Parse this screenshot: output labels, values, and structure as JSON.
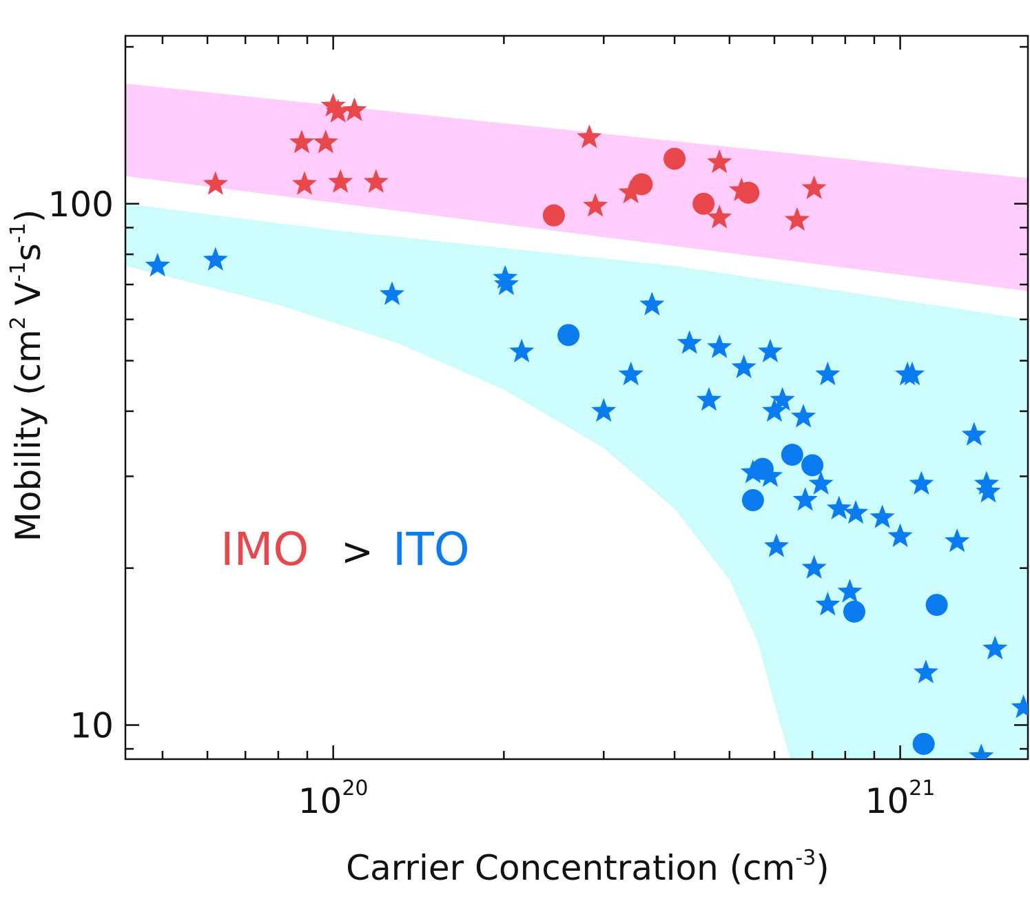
{
  "chart_data": {
    "type": "scatter",
    "x_scale": "log",
    "y_scale": "log",
    "xlabel": "Carrier Concentration (cm",
    "xlabel_sup": "-3",
    "xlabel_end": ")",
    "ylabel_parts": [
      "Mobility (cm",
      "2",
      " V",
      "-1",
      "s",
      "-1",
      ")"
    ],
    "xlim": [
      4.3e+19,
      1.68e+21
    ],
    "ylim": [
      8.6,
      210
    ],
    "x_ticks": [
      {
        "base": "10",
        "exp": "20",
        "value": 1e+20
      },
      {
        "base": "10",
        "exp": "21",
        "value": 1e+21
      }
    ],
    "y_ticks": [
      {
        "label": "100",
        "value": 100
      },
      {
        "label": "10",
        "value": 10
      }
    ],
    "grid": false,
    "annotation": {
      "parts": [
        {
          "text": "IMO",
          "color": "#e8474c"
        },
        {
          "text": ">",
          "color": "#111111"
        },
        {
          "text": "ITO",
          "color": "#0a7cf0"
        }
      ]
    },
    "bands": [
      {
        "color": "#ffccfb",
        "upper": [
          [
            4.3e+19,
            170
          ],
          [
            1.68e+21,
            112
          ]
        ],
        "lower": [
          [
            4.3e+19,
            113
          ],
          [
            1.68e+21,
            68
          ]
        ]
      },
      {
        "color": "#ccfcfb",
        "upper": [
          [
            4.3e+19,
            100
          ],
          [
            1e+20,
            89
          ],
          [
            4e+20,
            76
          ],
          [
            1.68e+21,
            60
          ]
        ],
        "lower": [
          [
            4.3e+19,
            76
          ],
          [
            8e+19,
            64
          ],
          [
            1.3e+20,
            54
          ],
          [
            2e+20,
            44
          ],
          [
            3e+20,
            34
          ],
          [
            4e+20,
            26
          ],
          [
            5e+20,
            19
          ],
          [
            5.6e+20,
            14.5
          ],
          [
            6e+20,
            11
          ],
          [
            6.4e+20,
            8.6
          ],
          [
            1.68e+21,
            8.6
          ]
        ]
      }
    ],
    "series": [
      {
        "marker": "star",
        "color": "#e8474c",
        "points": [
          [
            6.2e+19,
            109
          ],
          [
            8.8e+19,
            131
          ],
          [
            8.9e+19,
            109
          ],
          [
            9.7e+19,
            131
          ],
          [
            1e+20,
            154
          ],
          [
            1.02e+20,
            150
          ],
          [
            1.09e+20,
            151
          ],
          [
            1.03e+20,
            110
          ],
          [
            1.19e+20,
            110
          ],
          [
            2.83e+20,
            134
          ],
          [
            2.9e+20,
            99
          ],
          [
            3.35e+20,
            105
          ],
          [
            4.8e+20,
            120
          ],
          [
            5.25e+20,
            106
          ],
          [
            4.8e+20,
            94
          ],
          [
            6.58e+20,
            93
          ],
          [
            7.05e+20,
            107
          ]
        ]
      },
      {
        "marker": "circle",
        "color": "#e8474c",
        "points": [
          [
            2.45e+20,
            95
          ],
          [
            3.5e+20,
            109
          ],
          [
            4e+20,
            122
          ],
          [
            4.5e+20,
            100
          ],
          [
            5.4e+20,
            105
          ]
        ]
      },
      {
        "marker": "star",
        "color": "#0a7cf0",
        "points": [
          [
            4.9e+19,
            76
          ],
          [
            6.2e+19,
            78
          ],
          [
            1.27e+20,
            67
          ],
          [
            2.01e+20,
            72
          ],
          [
            2.02e+20,
            70
          ],
          [
            2.15e+20,
            52
          ],
          [
            3e+20,
            40
          ],
          [
            3.35e+20,
            47
          ],
          [
            3.65e+20,
            64
          ],
          [
            4.25e+20,
            54
          ],
          [
            4.6e+20,
            42
          ],
          [
            4.8e+20,
            53
          ],
          [
            5.3e+20,
            48.5
          ],
          [
            5.9e+20,
            52
          ],
          [
            5.9e+20,
            30
          ],
          [
            6e+20,
            40
          ],
          [
            6.2e+20,
            42
          ],
          [
            6.75e+20,
            39
          ],
          [
            6.8e+20,
            27
          ],
          [
            7.05e+20,
            20
          ],
          [
            7.25e+20,
            29
          ],
          [
            7.45e+20,
            47
          ],
          [
            7.45e+20,
            17
          ],
          [
            7.8e+20,
            26
          ],
          [
            8.15e+20,
            18
          ],
          [
            8.35e+20,
            25.5
          ],
          [
            9.3e+20,
            25
          ],
          [
            1e+21,
            23
          ],
          [
            1.03e+21,
            47
          ],
          [
            1.05e+21,
            47
          ],
          [
            1.09e+21,
            29
          ],
          [
            1.11e+21,
            12.6
          ],
          [
            1.26e+21,
            22.5
          ],
          [
            1.35e+21,
            36
          ],
          [
            1.42e+21,
            29
          ],
          [
            1.43e+21,
            28
          ],
          [
            1.47e+21,
            14
          ],
          [
            1.65e+21,
            10.8
          ],
          [
            1.39e+21,
            8.7
          ],
          [
            5.5e+20,
            30.5
          ],
          [
            6.05e+20,
            22
          ]
        ]
      },
      {
        "marker": "circle",
        "color": "#0a7cf0",
        "points": [
          [
            2.6e+20,
            56
          ],
          [
            5.5e+20,
            27
          ],
          [
            5.72e+20,
            31
          ],
          [
            6.45e+20,
            33
          ],
          [
            7e+20,
            31.5
          ],
          [
            8.3e+20,
            16.5
          ],
          [
            1.1e+21,
            9.2
          ],
          [
            1.16e+21,
            17
          ]
        ]
      }
    ]
  }
}
